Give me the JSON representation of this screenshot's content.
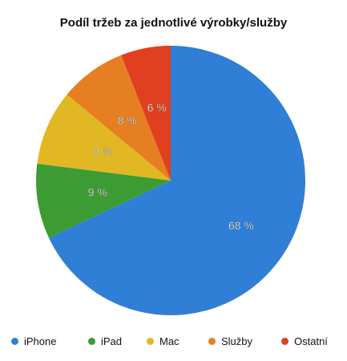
{
  "chart_data": {
    "type": "pie",
    "title": "Podíl tržeb za jednotlivé výrobky/služby",
    "slices": [
      {
        "label": "iPhone",
        "value": 68,
        "display": "68 %",
        "color": "#2f7fd6"
      },
      {
        "label": "iPad",
        "value": 9,
        "display": "9 %",
        "color": "#3d9b33"
      },
      {
        "label": "Mac",
        "value": 9,
        "display": "9 %",
        "color": "#e1b824"
      },
      {
        "label": "Služby",
        "value": 8,
        "display": "8 %",
        "color": "#e67f22"
      },
      {
        "label": "Ostatní",
        "value": 6,
        "display": "6 %",
        "color": "#e0401f"
      }
    ],
    "start_angle_deg": 0,
    "direction": "clockwise",
    "legend_position": "bottom"
  }
}
